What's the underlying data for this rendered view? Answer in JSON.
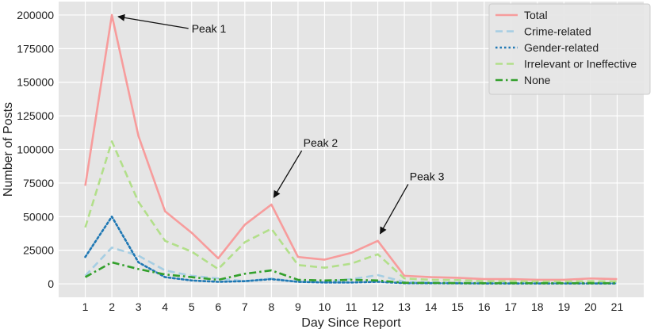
{
  "chart_data": {
    "type": "line",
    "title": "",
    "xlabel": "Day Since Report",
    "ylabel": "Number of Posts",
    "x": [
      1,
      2,
      3,
      4,
      5,
      6,
      7,
      8,
      9,
      10,
      11,
      12,
      13,
      14,
      15,
      16,
      17,
      18,
      19,
      20,
      21
    ],
    "xlim": [
      0,
      22
    ],
    "ylim": [
      -10000,
      210000
    ],
    "yticks": [
      0,
      25000,
      50000,
      75000,
      100000,
      125000,
      150000,
      175000,
      200000
    ],
    "grid": true,
    "background": "#e5e5e5",
    "legend_position": "top-right",
    "series": [
      {
        "name": "Total",
        "color": "#f79c9c",
        "style": "solid",
        "values": [
          73000,
          200000,
          110000,
          54000,
          38000,
          19000,
          44000,
          59000,
          20000,
          18000,
          23000,
          32000,
          6000,
          5000,
          4500,
          3500,
          3500,
          3000,
          3000,
          4000,
          3500
        ]
      },
      {
        "name": "Crime-related",
        "color": "#a6cee3",
        "style": "dashed",
        "values": [
          6000,
          27000,
          21000,
          10000,
          6000,
          4000,
          2000,
          4000,
          1500,
          1500,
          3500,
          6500,
          1500,
          1000,
          800,
          700,
          700,
          600,
          600,
          600,
          600
        ]
      },
      {
        "name": "Gender-related",
        "color": "#1f78b4",
        "style": "dotted",
        "values": [
          20000,
          50000,
          16000,
          5000,
          2500,
          1500,
          2000,
          3500,
          1500,
          1000,
          1000,
          1500,
          500,
          500,
          400,
          300,
          300,
          300,
          300,
          300,
          300
        ]
      },
      {
        "name": "Irrelevant or Ineffective",
        "color": "#b2df8a",
        "style": "dashed",
        "values": [
          42000,
          106000,
          61000,
          32000,
          24000,
          11000,
          31000,
          41000,
          14000,
          12000,
          15000,
          22000,
          4000,
          3000,
          2800,
          2000,
          2000,
          1800,
          1800,
          2000,
          1800
        ]
      },
      {
        "name": "None",
        "color": "#33a02c",
        "style": "dashdot",
        "values": [
          5000,
          16000,
          11000,
          7000,
          5000,
          3000,
          7500,
          10000,
          3000,
          2500,
          3000,
          2500,
          800,
          700,
          600,
          500,
          500,
          500,
          500,
          500,
          500
        ]
      }
    ],
    "annotations": [
      {
        "text": "Peak 1",
        "x": 2,
        "y": 200000,
        "text_x": 5,
        "text_y": 190000
      },
      {
        "text": "Peak 2",
        "x": 8,
        "y": 59000,
        "text_x": 9.2,
        "text_y": 105000
      },
      {
        "text": "Peak 3",
        "x": 12,
        "y": 32000,
        "text_x": 13.2,
        "text_y": 80000
      }
    ]
  }
}
